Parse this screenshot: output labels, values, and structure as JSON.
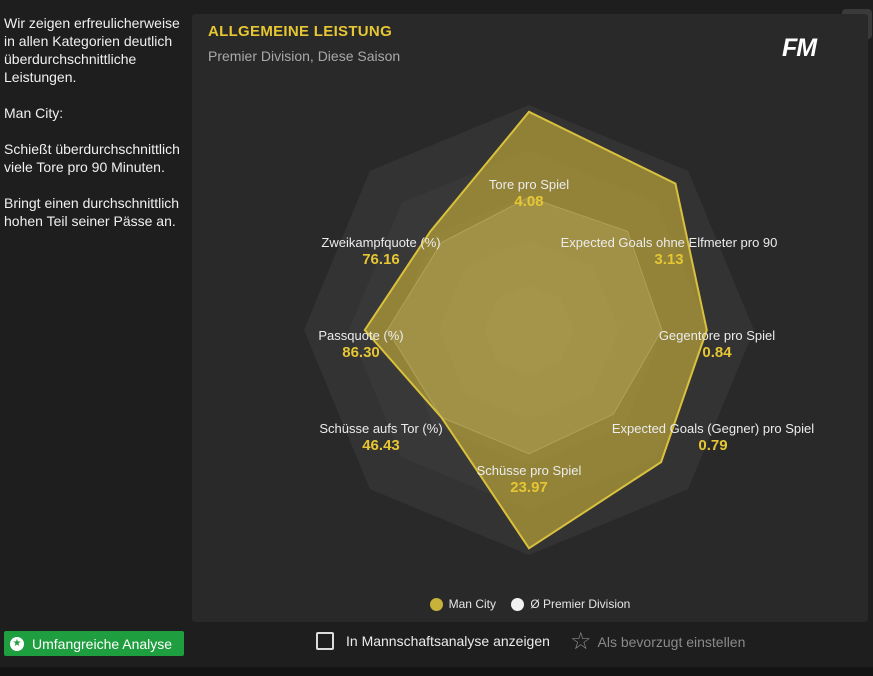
{
  "sidebar": {
    "paragraphs": [
      "Wir zeigen erfreulicherweise in allen Kategorien deutlich überdurchschnittliche Leistungen.",
      "Man City:",
      "Schießt überdurchschnittlich viele Tore pro 90 Minuten.",
      "Bringt einen durchschnittlich hohen Teil seiner Pässe an."
    ]
  },
  "panel": {
    "title": "ALLGEMEINE LEISTUNG",
    "subtitle": "Premier Division, Diese Saison",
    "logo": "FM",
    "close_icon": "close-icon"
  },
  "chart_data": {
    "type": "radar",
    "axes": [
      {
        "name": "Tore pro Spiel",
        "value": "4.08",
        "team": 0.97,
        "avg": 0.59
      },
      {
        "name": "Expected Goals ohne Elfmeter pro 90",
        "value": "3.13",
        "team": 0.92,
        "avg": 0.62
      },
      {
        "name": "Gegentore pro Spiel",
        "value": "0.84",
        "team": 0.79,
        "avg": 0.59
      },
      {
        "name": "Expected Goals (Gegner) pro Spiel",
        "value": "0.79",
        "team": 0.83,
        "avg": 0.53
      },
      {
        "name": "Schüsse pro Spiel",
        "value": "23.97",
        "team": 0.97,
        "avg": 0.55
      },
      {
        "name": "Schüsse aufs Tor (%)",
        "value": "46.43",
        "team": 0.55,
        "avg": 0.55
      },
      {
        "name": "Passquote (%)",
        "value": "86.30",
        "team": 0.73,
        "avg": 0.63
      },
      {
        "name": "Zweikampfquote (%)",
        "value": "76.16",
        "team": 0.62,
        "avg": 0.55
      }
    ],
    "series": [
      {
        "name": "Man City",
        "color": "#c9b23a"
      },
      {
        "name": "Ø Premier Division",
        "color": "#f2f2f2"
      }
    ],
    "legend_position": "bottom-center"
  },
  "bottom": {
    "analysis_button": "Umfangreiche Analyse",
    "analysis_icon": "star-badge-icon",
    "checkbox_label": "In Mannschaftsanalyse anzeigen",
    "favorite_label": "Als bevorzugt einstellen",
    "favorite_icon": "star-outline-icon"
  }
}
